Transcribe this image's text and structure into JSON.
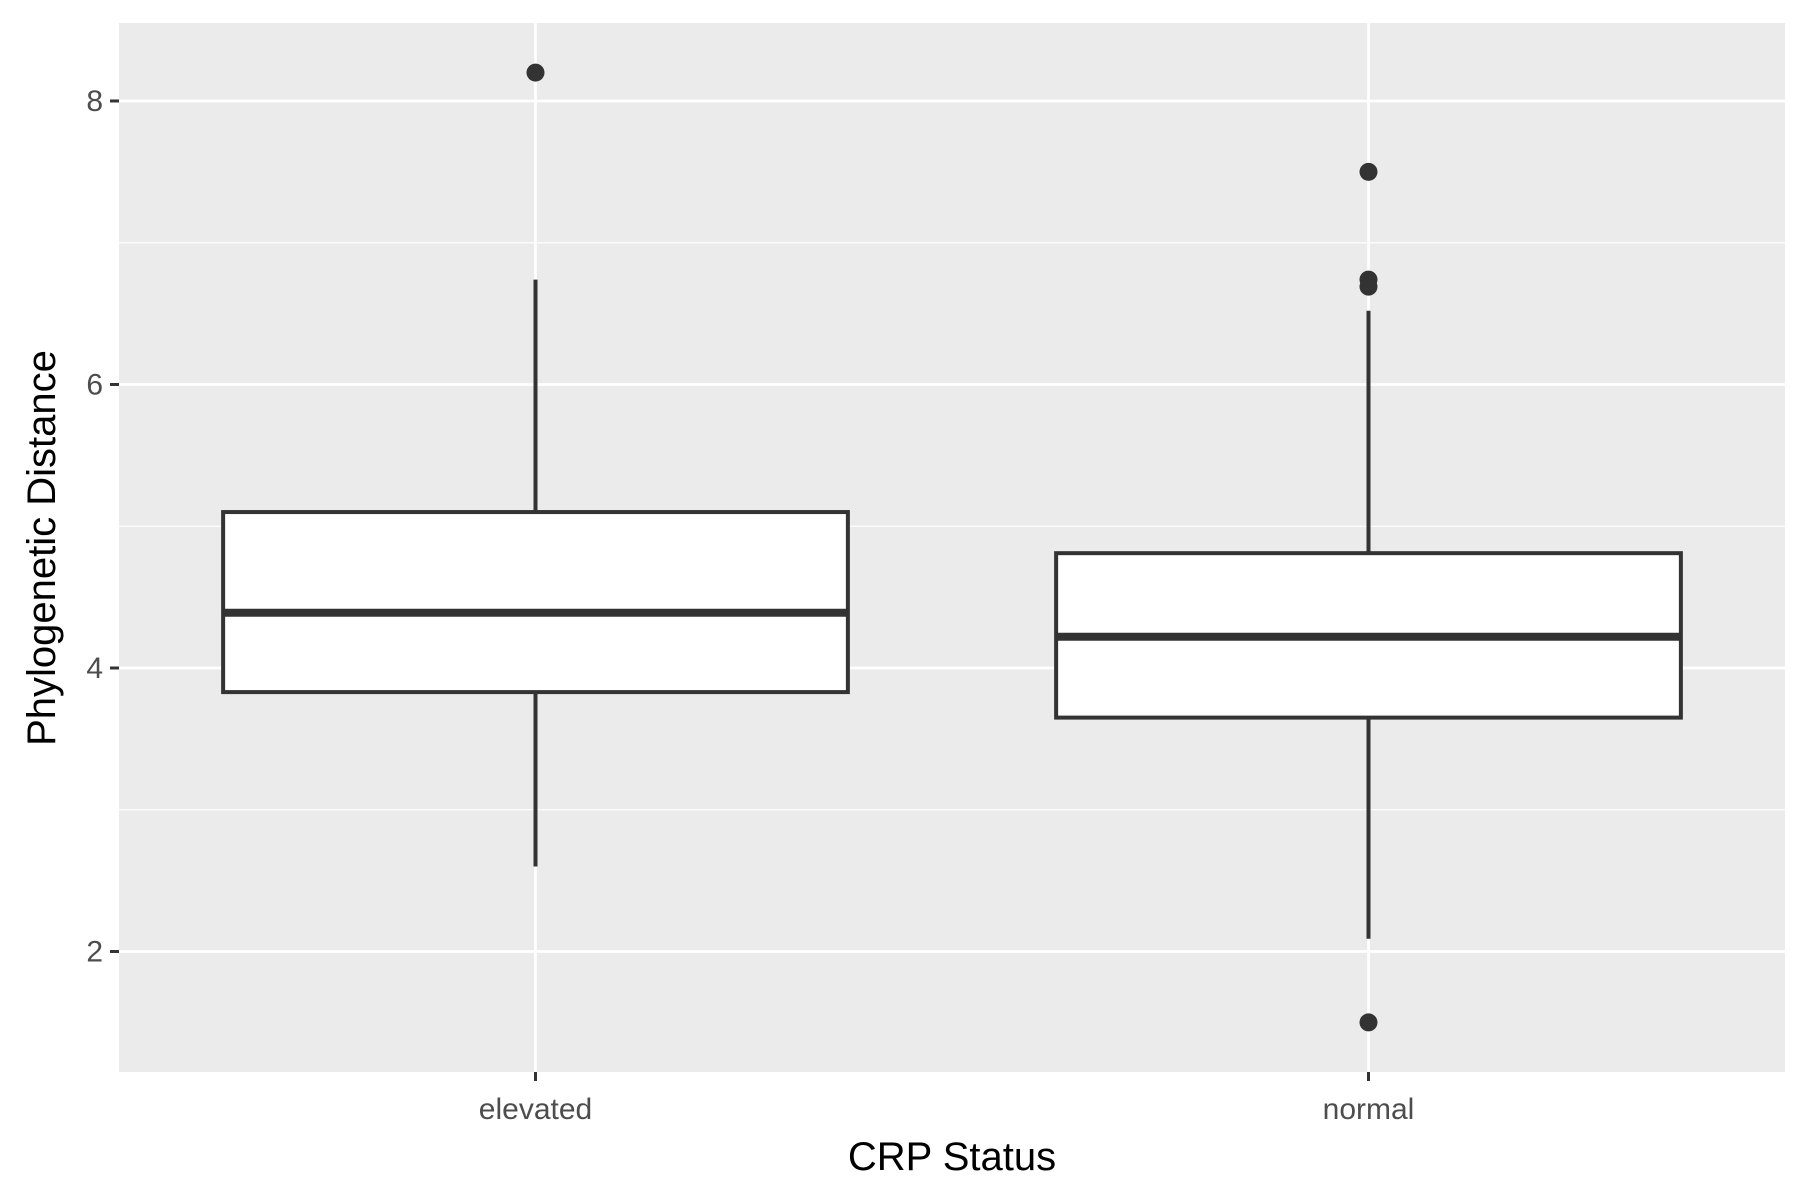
{
  "chart_data": {
    "type": "box",
    "title": "",
    "xlabel": "CRP Status",
    "ylabel": "Phylogenetic Distance",
    "ylim": [
      1.15,
      8.55
    ],
    "y_ticks": [
      2,
      4,
      6,
      8
    ],
    "y_tick_labels": [
      "2",
      "4",
      "6",
      "8"
    ],
    "grid": true,
    "categories": [
      "elevated",
      "normal"
    ],
    "boxes": [
      {
        "category": "elevated",
        "whisker_low": 2.6,
        "q1": 3.83,
        "median": 4.39,
        "q3": 5.1,
        "whisker_high": 6.74,
        "outliers": [
          8.2
        ]
      },
      {
        "category": "normal",
        "whisker_low": 2.09,
        "q1": 3.65,
        "median": 4.22,
        "q3": 4.81,
        "whisker_high": 6.52,
        "outliers": [
          7.5,
          6.74,
          6.69,
          1.5
        ]
      }
    ],
    "colors": {
      "panel": "#ebebeb",
      "grid": "#ffffff",
      "box_fill": "#ffffff",
      "box_line": "#333333",
      "outlier": "#333333",
      "tick": "#333333"
    }
  }
}
